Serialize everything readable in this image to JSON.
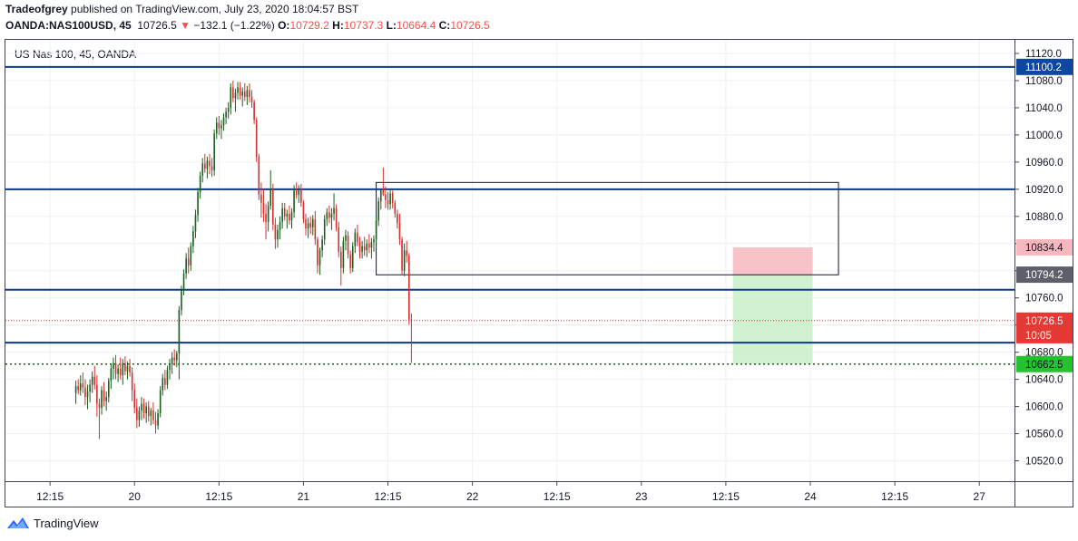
{
  "header": {
    "author": "Tradeofgrey",
    "published_text": "published on TradingView.com, July 23, 2020 18:04:57 BST",
    "symbol": "OANDA:NAS100USD, 45",
    "last": "10726.5",
    "change": "−132.1 (−1.22%)",
    "o_label": "O:",
    "o_value": "10729.2",
    "h_label": "H:",
    "h_value": "10737.3",
    "l_label": "L:",
    "l_value": "10664.4",
    "c_label": "C:",
    "c_value": "10726.5"
  },
  "footer": {
    "brand": "TradingView"
  },
  "colors": {
    "up": "#1b5e20",
    "down": "#d32f2f",
    "hline": "#0d3a8c",
    "stop_fill": "#f6b8be",
    "target_fill": "#c9f0c8"
  },
  "chart_data": {
    "type": "candlestick",
    "title": "US Nas 100, 45, OANDA",
    "ylim": [
      10490,
      11140
    ],
    "y_ticks": [
      11120,
      11080,
      11040,
      11000,
      10960,
      10920,
      10880,
      10840,
      10800,
      10760,
      10720,
      10680,
      10640,
      10600,
      10560,
      10520
    ],
    "x_tick_labels": [
      "12:15",
      "20",
      "12:15",
      "21",
      "12:15",
      "22",
      "12:15",
      "23",
      "12:15",
      "24",
      "12:15",
      "27"
    ],
    "x_range": [
      -30,
      400
    ],
    "x_ticks": [
      -11,
      25,
      61,
      97,
      133,
      169,
      205,
      241,
      277,
      313,
      349,
      385
    ],
    "price_labels": [
      {
        "text": "11100.2",
        "value": 11100.2,
        "style": "blue"
      },
      {
        "text": "10834.4",
        "value": 10834.4,
        "style": "pink"
      },
      {
        "text": "10794.2",
        "value": 10794.2,
        "style": "gray"
      },
      {
        "text": "10726.5",
        "value": 10726.5,
        "style": "red"
      },
      {
        "text": "10:05",
        "value": 10705,
        "style": "red"
      },
      {
        "text": "10662.5",
        "value": 10662.5,
        "style": "green"
      }
    ],
    "horizontal_lines": [
      11100.2,
      10920,
      10772,
      10694
    ],
    "dotted_lines": [
      {
        "value": 10726.5,
        "color": "red"
      },
      {
        "value": 10662.5,
        "color": "green"
      }
    ],
    "range_box": {
      "x_start": 128,
      "x_end": 325,
      "y_top": 10930,
      "y_bottom": 10794
    },
    "position": {
      "x_start": 280,
      "x_end": 314,
      "entry": 10794.2,
      "stop": 10834.4,
      "target": 10662.5
    },
    "candles": [
      [
        10620,
        10638,
        10604,
        10630
      ],
      [
        10630,
        10640,
        10618,
        10624
      ],
      [
        10624,
        10646,
        10616,
        10634
      ],
      [
        10634,
        10650,
        10620,
        10628
      ],
      [
        10628,
        10640,
        10602,
        10614
      ],
      [
        10614,
        10632,
        10596,
        10622
      ],
      [
        10622,
        10640,
        10606,
        10632
      ],
      [
        10632,
        10652,
        10620,
        10644
      ],
      [
        10644,
        10660,
        10625,
        10632
      ],
      [
        10632,
        10646,
        10585,
        10604
      ],
      [
        10604,
        10612,
        10552,
        10598
      ],
      [
        10598,
        10630,
        10588,
        10624
      ],
      [
        10624,
        10636,
        10600,
        10608
      ],
      [
        10608,
        10622,
        10594,
        10614
      ],
      [
        10614,
        10642,
        10606,
        10638
      ],
      [
        10638,
        10662,
        10626,
        10656
      ],
      [
        10656,
        10672,
        10640,
        10664
      ],
      [
        10664,
        10676,
        10640,
        10648
      ],
      [
        10648,
        10662,
        10636,
        10656
      ],
      [
        10656,
        10672,
        10640,
        10646
      ],
      [
        10646,
        10670,
        10632,
        10664
      ],
      [
        10664,
        10674,
        10646,
        10652
      ],
      [
        10652,
        10666,
        10640,
        10660
      ],
      [
        10660,
        10670,
        10644,
        10650
      ],
      [
        10650,
        10658,
        10608,
        10624
      ],
      [
        10624,
        10634,
        10590,
        10598
      ],
      [
        10598,
        10612,
        10568,
        10580
      ],
      [
        10580,
        10600,
        10570,
        10594
      ],
      [
        10594,
        10614,
        10580,
        10604
      ],
      [
        10604,
        10612,
        10582,
        10590
      ],
      [
        10590,
        10606,
        10576,
        10600
      ],
      [
        10600,
        10608,
        10578,
        10586
      ],
      [
        10586,
        10598,
        10572,
        10594
      ],
      [
        10594,
        10606,
        10574,
        10580
      ],
      [
        10580,
        10592,
        10560,
        10572
      ],
      [
        10572,
        10596,
        10566,
        10590
      ],
      [
        10590,
        10630,
        10584,
        10624
      ],
      [
        10624,
        10648,
        10616,
        10642
      ],
      [
        10642,
        10654,
        10624,
        10632
      ],
      [
        10632,
        10660,
        10626,
        10654
      ],
      [
        10654,
        10670,
        10640,
        10662
      ],
      [
        10662,
        10680,
        10648,
        10672
      ],
      [
        10672,
        10684,
        10660,
        10668
      ],
      [
        10668,
        10682,
        10658,
        10678
      ],
      [
        10678,
        10748,
        10640,
        10742
      ],
      [
        10742,
        10778,
        10734,
        10772
      ],
      [
        10772,
        10802,
        10764,
        10796
      ],
      [
        10796,
        10826,
        10788,
        10818
      ],
      [
        10818,
        10834,
        10796,
        10808
      ],
      [
        10808,
        10842,
        10800,
        10836
      ],
      [
        10836,
        10866,
        10826,
        10858
      ],
      [
        10858,
        10890,
        10848,
        10882
      ],
      [
        10882,
        10922,
        10872,
        10916
      ],
      [
        10916,
        10946,
        10906,
        10940
      ],
      [
        10940,
        10966,
        10930,
        10958
      ],
      [
        10958,
        10972,
        10944,
        10950
      ],
      [
        10950,
        10968,
        10936,
        10962
      ],
      [
        10962,
        10972,
        10942,
        10954
      ],
      [
        10954,
        10966,
        10938,
        10948
      ],
      [
        10948,
        11008,
        10940,
        11002
      ],
      [
        11002,
        11026,
        10994,
        11018
      ],
      [
        11018,
        11028,
        11000,
        11010
      ],
      [
        11010,
        11022,
        10994,
        11014
      ],
      [
        11014,
        11032,
        11006,
        11026
      ],
      [
        11026,
        11040,
        11016,
        11034
      ],
      [
        11034,
        11048,
        11024,
        11040
      ],
      [
        11040,
        11076,
        11030,
        11070
      ],
      [
        11070,
        11080,
        11048,
        11054
      ],
      [
        11054,
        11068,
        11034,
        11062
      ],
      [
        11062,
        11078,
        11052,
        11070
      ],
      [
        11070,
        11078,
        11052,
        11058
      ],
      [
        11058,
        11070,
        11042,
        11064
      ],
      [
        11064,
        11076,
        11050,
        11056
      ],
      [
        11056,
        11072,
        11044,
        11066
      ],
      [
        11066,
        11076,
        11048,
        11056
      ],
      [
        11056,
        11066,
        11040,
        11048
      ],
      [
        11048,
        11052,
        11016,
        11022
      ],
      [
        11022,
        11026,
        10960,
        10968
      ],
      [
        10968,
        10972,
        10904,
        10912
      ],
      [
        10912,
        10930,
        10878,
        10900
      ],
      [
        10900,
        10920,
        10872,
        10884
      ],
      [
        10884,
        10898,
        10846,
        10872
      ],
      [
        10872,
        10902,
        10858,
        10896
      ],
      [
        10896,
        10948,
        10890,
        10920
      ],
      [
        10920,
        10928,
        10860,
        10868
      ],
      [
        10868,
        10878,
        10832,
        10846
      ],
      [
        10846,
        10868,
        10834,
        10860
      ],
      [
        10860,
        10880,
        10846,
        10872
      ],
      [
        10872,
        10900,
        10862,
        10892
      ],
      [
        10892,
        10900,
        10874,
        10880
      ],
      [
        10880,
        10890,
        10862,
        10884
      ],
      [
        10884,
        10896,
        10868,
        10874
      ],
      [
        10874,
        10892,
        10862,
        10886
      ],
      [
        10886,
        10926,
        10878,
        10918
      ],
      [
        10918,
        10930,
        10906,
        10912
      ],
      [
        10912,
        10926,
        10900,
        10920
      ],
      [
        10920,
        10928,
        10894,
        10900
      ],
      [
        10900,
        10904,
        10870,
        10876
      ],
      [
        10876,
        10884,
        10852,
        10862
      ],
      [
        10862,
        10878,
        10848,
        10870
      ],
      [
        10870,
        10880,
        10854,
        10864
      ],
      [
        10864,
        10882,
        10852,
        10876
      ],
      [
        10876,
        10888,
        10838,
        10846
      ],
      [
        10846,
        10850,
        10796,
        10808
      ],
      [
        10808,
        10834,
        10794,
        10830
      ],
      [
        10830,
        10852,
        10820,
        10846
      ],
      [
        10846,
        10882,
        10838,
        10876
      ],
      [
        10876,
        10892,
        10866,
        10886
      ],
      [
        10886,
        10896,
        10870,
        10878
      ],
      [
        10878,
        10892,
        10860,
        10884
      ],
      [
        10884,
        10914,
        10874,
        10892
      ],
      [
        10892,
        10898,
        10858,
        10864
      ],
      [
        10864,
        10872,
        10820,
        10828
      ],
      [
        10828,
        10836,
        10778,
        10804
      ],
      [
        10804,
        10850,
        10796,
        10844
      ],
      [
        10844,
        10860,
        10830,
        10852
      ],
      [
        10852,
        10858,
        10818,
        10824
      ],
      [
        10824,
        10830,
        10796,
        10804
      ],
      [
        10804,
        10842,
        10798,
        10836
      ],
      [
        10836,
        10862,
        10826,
        10856
      ],
      [
        10856,
        10868,
        10836,
        10842
      ],
      [
        10842,
        10850,
        10818,
        10828
      ],
      [
        10828,
        10844,
        10818,
        10836
      ],
      [
        10836,
        10850,
        10822,
        10830
      ],
      [
        10830,
        10846,
        10820,
        10840
      ],
      [
        10840,
        10854,
        10826,
        10834
      ],
      [
        10834,
        10848,
        10818,
        10842
      ],
      [
        10842,
        10852,
        10828,
        10846
      ],
      [
        10846,
        10880,
        10840,
        10874
      ],
      [
        10874,
        10908,
        10866,
        10902
      ],
      [
        10902,
        10916,
        10890,
        10920
      ],
      [
        10920,
        10952,
        10910,
        10912
      ],
      [
        10912,
        10924,
        10892,
        10904
      ],
      [
        10904,
        10916,
        10890,
        10898
      ],
      [
        10898,
        10920,
        10890,
        10914
      ],
      [
        10914,
        10918,
        10892,
        10900
      ],
      [
        10900,
        10904,
        10878,
        10884
      ],
      [
        10884,
        10890,
        10862,
        10870
      ],
      [
        10870,
        10884,
        10838,
        10846
      ],
      [
        10846,
        10850,
        10794,
        10800
      ],
      [
        10800,
        10840,
        10792,
        10830
      ],
      [
        10830,
        10844,
        10812,
        10822
      ],
      [
        10822,
        10826,
        10720,
        10728
      ],
      [
        10728,
        10737,
        10664,
        10726
      ]
    ]
  }
}
